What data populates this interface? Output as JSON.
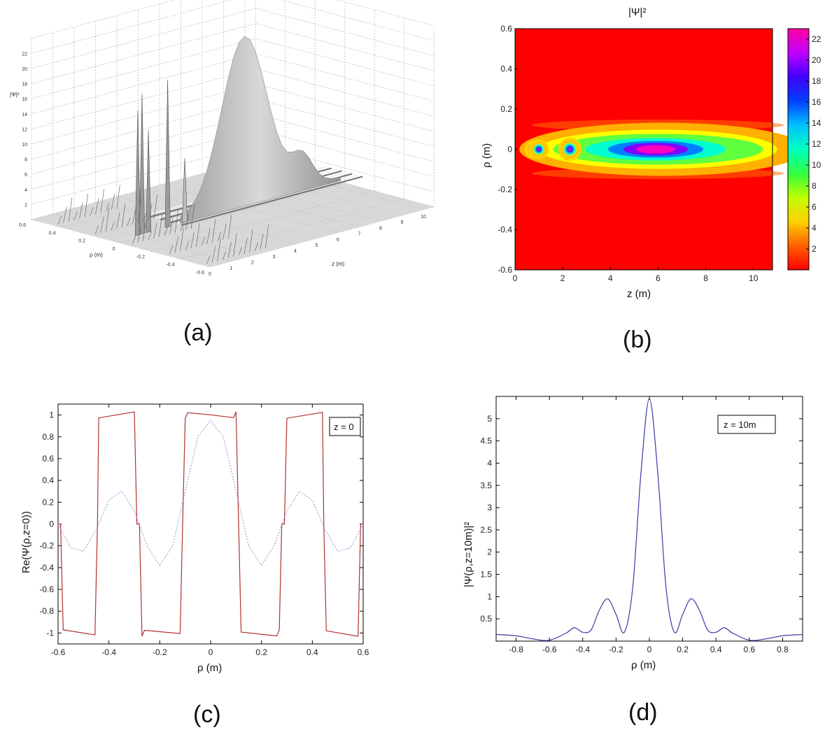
{
  "captions": [
    "(a)",
    "(b)",
    "(c)",
    "(d)"
  ],
  "colors": {
    "surface": "#c8c8c8",
    "curve_c_solid": "#b03030",
    "curve_c_dotted": "#8888c0",
    "curve_d": "#3a3aa8",
    "colormap": [
      "#ff0000",
      "#ff8000",
      "#ffff00",
      "#80ff00",
      "#00ff80",
      "#00ffff",
      "#0080ff",
      "#0000ff",
      "#8000ff",
      "#ff00ff"
    ]
  },
  "chart_data": [
    {
      "id": "a",
      "type": "surface3d",
      "zlabel": "|Ψ|²",
      "xlabel": "z (m)",
      "ylabel": "ρ (m)",
      "z_ticks": [
        "0",
        "1",
        "2",
        "3",
        "4",
        "5",
        "6",
        "7",
        "8",
        "9",
        "10"
      ],
      "rho_ticks": [
        "0.6",
        "0.4",
        "0.2",
        "0",
        "-0.2",
        "-0.4",
        "-0.6"
      ],
      "value_ticks": [
        "2",
        "4",
        "6",
        "8",
        "10",
        "12",
        "14",
        "16",
        "18",
        "20",
        "22"
      ],
      "peaks": [
        {
          "z": 0.8,
          "value": 17
        },
        {
          "z": 1.0,
          "value": 19
        },
        {
          "z": 1.3,
          "value": 14
        },
        {
          "z": 2.2,
          "value": 20
        },
        {
          "z": 3.0,
          "value": 9
        },
        {
          "z": 6.0,
          "value": 22
        }
      ]
    },
    {
      "id": "b",
      "type": "heatmap",
      "title": "|Ψ|²",
      "xlabel": "z (m)",
      "ylabel": "ρ (m)",
      "xlim": [
        0,
        10.8
      ],
      "ylim": [
        -0.6,
        0.6
      ],
      "x_ticks": [
        "0",
        "2",
        "4",
        "6",
        "8",
        "10"
      ],
      "y_ticks": [
        "0.6",
        "0.4",
        "0.2",
        "0",
        "-0.2",
        "-0.4",
        "-0.6"
      ],
      "colorbar_ticks": [
        "22",
        "20",
        "18",
        "16",
        "14",
        "12",
        "10",
        "8",
        "6",
        "4",
        "2"
      ],
      "color_range": [
        0,
        23
      ],
      "hotspots": [
        {
          "z": 0.8,
          "rho": 0,
          "value": 12
        },
        {
          "z": 1.0,
          "value": 14,
          "rho": 0
        },
        {
          "z": 2.3,
          "rho": 0,
          "value": 19
        },
        {
          "z": 6.0,
          "rho": 0,
          "value": 22
        }
      ]
    },
    {
      "id": "c",
      "type": "line",
      "xlabel": "ρ (m)",
      "ylabel": "Re(Ψ(ρ,z=0))",
      "legend": "z = 0",
      "xlim": [
        -0.6,
        0.6
      ],
      "ylim": [
        -1.1,
        1.1
      ],
      "x_ticks": [
        "-0.6",
        "-0.4",
        "-0.2",
        "0",
        "0.2",
        "0.4",
        "0.6"
      ],
      "y_ticks": [
        "1",
        "0.8",
        "0.6",
        "0.4",
        "0.2",
        "0",
        "-0.2",
        "-0.4",
        "-0.6",
        "-0.8",
        "-1"
      ],
      "series": [
        {
          "style": "solid",
          "x": [
            -0.6,
            -0.59,
            -0.58,
            -0.455,
            -0.445,
            -0.44,
            -0.3,
            -0.29,
            -0.28,
            -0.27,
            -0.26,
            -0.12,
            -0.11,
            -0.1,
            -0.09,
            0,
            0.09,
            0.1,
            0.11,
            0.12,
            0.26,
            0.27,
            0.28,
            0.29,
            0.3,
            0.44,
            0.445,
            0.455,
            0.58,
            0.59,
            0.6
          ],
          "values": [
            0,
            0,
            -1,
            -1,
            0,
            1,
            1,
            0,
            0,
            -1,
            -1,
            -1,
            0,
            1,
            1,
            1,
            1,
            1,
            0,
            -1,
            -1,
            -1,
            0,
            0,
            1,
            1,
            0,
            -1,
            -1,
            0,
            0
          ]
        },
        {
          "style": "dotted",
          "x": [
            -0.6,
            -0.55,
            -0.5,
            -0.45,
            -0.4,
            -0.35,
            -0.3,
            -0.25,
            -0.2,
            -0.15,
            -0.1,
            -0.05,
            0,
            0.05,
            0.1,
            0.15,
            0.2,
            0.25,
            0.3,
            0.35,
            0.4,
            0.45,
            0.5,
            0.55,
            0.6
          ],
          "values": [
            0,
            -0.22,
            -0.25,
            -0.05,
            0.22,
            0.3,
            0.12,
            -0.2,
            -0.38,
            -0.2,
            0.3,
            0.8,
            0.95,
            0.8,
            0.3,
            -0.2,
            -0.38,
            -0.2,
            0.12,
            0.3,
            0.22,
            -0.05,
            -0.25,
            -0.22,
            0
          ]
        }
      ]
    },
    {
      "id": "d",
      "type": "line",
      "xlabel": "ρ (m)",
      "ylabel": "|Ψ(ρ,z=10m)|²",
      "legend": "z = 10m",
      "xlim": [
        -0.92,
        0.92
      ],
      "ylim": [
        0,
        5.5
      ],
      "x_ticks": [
        "-0.8",
        "-0.6",
        "-0.4",
        "-0.2",
        "0",
        "0.2",
        "0.4",
        "0.6",
        "0.8"
      ],
      "y_ticks": [
        "5",
        "4.5",
        "4",
        "3.5",
        "3",
        "2.5",
        "2",
        "1.5",
        "1",
        "0.5"
      ],
      "series": [
        {
          "style": "solid",
          "x": [
            -0.92,
            -0.8,
            -0.7,
            -0.6,
            -0.5,
            -0.45,
            -0.4,
            -0.35,
            -0.3,
            -0.25,
            -0.2,
            -0.15,
            -0.1,
            -0.05,
            0,
            0.05,
            0.1,
            0.15,
            0.2,
            0.25,
            0.3,
            0.35,
            0.4,
            0.45,
            0.5,
            0.6,
            0.7,
            0.8,
            0.92
          ],
          "values": [
            0.15,
            0.12,
            0.05,
            0.02,
            0.18,
            0.3,
            0.2,
            0.25,
            0.7,
            0.95,
            0.6,
            0.2,
            1.2,
            3.8,
            5.45,
            3.8,
            1.2,
            0.2,
            0.6,
            0.95,
            0.7,
            0.25,
            0.2,
            0.3,
            0.18,
            0.02,
            0.05,
            0.12,
            0.15
          ]
        }
      ]
    }
  ]
}
